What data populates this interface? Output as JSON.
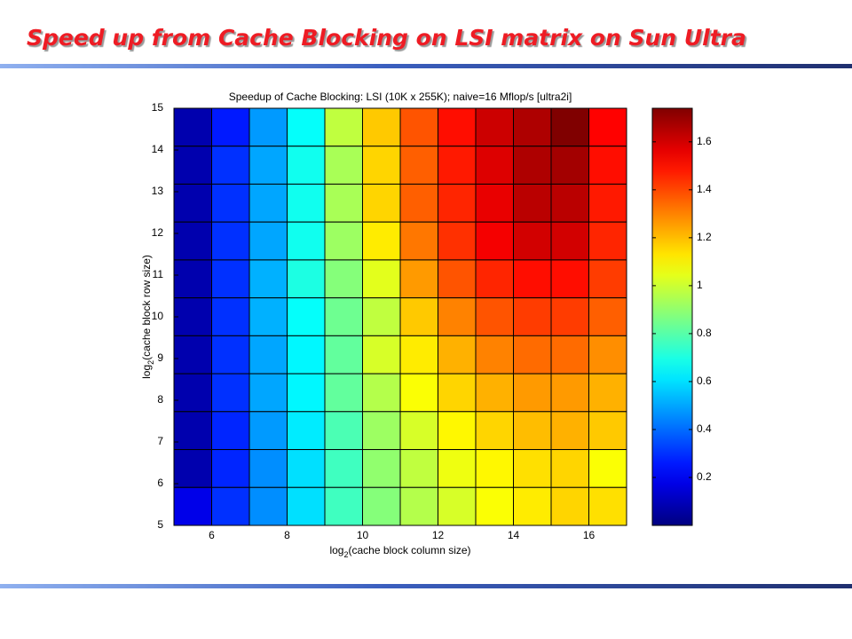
{
  "header": {
    "title": "Speed up from Cache Blocking on LSI matrix on Sun Ultra"
  },
  "chart_data": {
    "type": "heatmap",
    "title": "Speedup of Cache Blocking: LSI (10K x 255K); naive=16 Mflop/s [ultra2i]",
    "xlabel": [
      "log",
      "2",
      "(cache block column size)"
    ],
    "ylabel": [
      "log",
      "2",
      "(cache block row size)"
    ],
    "xlim": [
      5,
      17
    ],
    "xticks": [
      6,
      8,
      10,
      12,
      14,
      16
    ],
    "ylim": [
      5,
      15
    ],
    "yticks": [
      5,
      6,
      7,
      8,
      9,
      10,
      11,
      12,
      13,
      14,
      15
    ],
    "colormap": "jet",
    "clim": [
      0,
      1.74
    ],
    "cticks": [
      0.2,
      0.4,
      0.6,
      0.8,
      1,
      1.2,
      1.4,
      1.6
    ],
    "values": [
      [
        0.08,
        0.26,
        0.48,
        0.66,
        0.98,
        1.18,
        1.38,
        1.5,
        1.61,
        1.66,
        1.74,
        1.52
      ],
      [
        0.08,
        0.3,
        0.5,
        0.68,
        0.94,
        1.16,
        1.36,
        1.48,
        1.58,
        1.66,
        1.68,
        1.5
      ],
      [
        0.08,
        0.3,
        0.5,
        0.68,
        0.94,
        1.16,
        1.36,
        1.46,
        1.56,
        1.64,
        1.64,
        1.48
      ],
      [
        0.08,
        0.3,
        0.5,
        0.68,
        0.92,
        1.12,
        1.32,
        1.44,
        1.54,
        1.6,
        1.6,
        1.46
      ],
      [
        0.08,
        0.3,
        0.52,
        0.7,
        0.88,
        1.04,
        1.26,
        1.38,
        1.46,
        1.5,
        1.5,
        1.42
      ],
      [
        0.08,
        0.3,
        0.52,
        0.66,
        0.84,
        0.98,
        1.18,
        1.3,
        1.38,
        1.42,
        1.42,
        1.36
      ],
      [
        0.08,
        0.3,
        0.5,
        0.64,
        0.82,
        1.02,
        1.12,
        1.22,
        1.3,
        1.34,
        1.34,
        1.28
      ],
      [
        0.08,
        0.3,
        0.5,
        0.64,
        0.82,
        0.96,
        1.08,
        1.16,
        1.22,
        1.26,
        1.26,
        1.22
      ],
      [
        0.08,
        0.28,
        0.48,
        0.62,
        0.78,
        0.92,
        1.02,
        1.1,
        1.16,
        1.2,
        1.22,
        1.18
      ],
      [
        0.08,
        0.28,
        0.46,
        0.6,
        0.76,
        0.9,
        0.98,
        1.06,
        1.1,
        1.14,
        1.16,
        1.08
      ],
      [
        0.18,
        0.3,
        0.46,
        0.6,
        0.76,
        0.88,
        0.96,
        1.02,
        1.08,
        1.12,
        1.16,
        1.14
      ]
    ]
  }
}
